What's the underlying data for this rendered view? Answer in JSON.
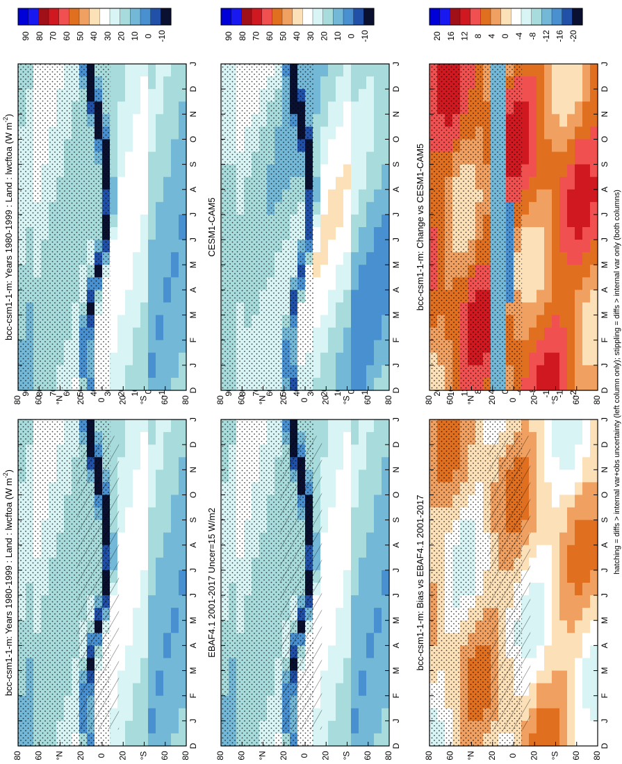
{
  "figure": {
    "footnote": "hatching = diffs > internal var+obs uncertainty (left column only); stippling = diffs > internal var only (both columns)",
    "colors": {
      "absolute": [
        "#0000d8",
        "#1818f0",
        "#a01018",
        "#d01820",
        "#f05050",
        "#e07020",
        "#f0a060",
        "#fce0b8",
        "#ffffff",
        "#d8f4f4",
        "#a8dcdc",
        "#74b8d8",
        "#4890d0",
        "#2050a8",
        "#0a1030"
      ],
      "diff": [
        "#0000d8",
        "#1818f0",
        "#a01018",
        "#d01820",
        "#f05050",
        "#e07020",
        "#f0a060",
        "#fce0b8",
        "#ffffff",
        "#d8f4f4",
        "#a8dcdc",
        "#74b8d8",
        "#4890d0",
        "#2050a8",
        "#0a1030"
      ]
    }
  },
  "chart_data": [
    {
      "type": "heatmap",
      "title": "bcc-csm1-1-m: Years 1980-1999 : Land : lwcftoa (W m",
      "title_sup": "-2",
      "title_end": ")",
      "x_ticks": [
        "D",
        "J",
        "F",
        "M",
        "A",
        "M",
        "J",
        "J",
        "A",
        "S",
        "O",
        "N",
        "D",
        "J"
      ],
      "y_ticks": [
        "80",
        "60",
        "°N",
        "20",
        "0",
        "20",
        "°S",
        "60",
        "80"
      ],
      "colorbar": [
        "90",
        "80",
        "70",
        "60",
        "50",
        "40",
        "30",
        "20",
        "10",
        "0",
        "-10"
      ],
      "scale": "absolute",
      "hatching": true
    },
    {
      "type": "heatmap",
      "title": "bcc-csm1-1-m: Years 1980-1999 : Land : lwcftoa (W m",
      "title_sup": "-2",
      "title_end": ")",
      "x_ticks": [
        "D",
        "J",
        "F",
        "M",
        "A",
        "M",
        "J",
        "J",
        "A",
        "S",
        "O",
        "N",
        "D",
        "J"
      ],
      "y_ticks": [
        "80",
        "60",
        "°N",
        "20",
        "0",
        "20",
        "°S",
        "60",
        "80"
      ],
      "colorbar": [
        "90",
        "80",
        "70",
        "60",
        "50",
        "40",
        "30",
        "20",
        "10",
        "0",
        "-10"
      ],
      "scale": "absolute",
      "hatching": false
    },
    {
      "type": "heatmap",
      "title": "EBAF4.1 2001-2017 Uncer=15 W/m2",
      "title_sup": "",
      "title_end": "",
      "x_ticks": [
        "D",
        "J",
        "F",
        "M",
        "A",
        "M",
        "J",
        "J",
        "A",
        "S",
        "O",
        "N",
        "D",
        "J"
      ],
      "y_ticks": [
        "80",
        "60",
        "°N",
        "20",
        "0",
        "20",
        "°S",
        "60",
        "80"
      ],
      "colorbar": [
        "90",
        "80",
        "70",
        "60",
        "50",
        "40",
        "30",
        "20",
        "10",
        "0",
        "-10"
      ],
      "scale": "absolute",
      "hatching": true
    },
    {
      "type": "heatmap",
      "title": "CESM1-CAM5",
      "title_sup": "",
      "title_end": "",
      "x_ticks": [
        "D",
        "J",
        "F",
        "M",
        "A",
        "M",
        "J",
        "J",
        "A",
        "S",
        "O",
        "N",
        "D",
        "J"
      ],
      "y_ticks": [
        "80",
        "60",
        "°N",
        "20",
        "0",
        "20",
        "°S",
        "60",
        "80"
      ],
      "colorbar": [
        "90",
        "80",
        "70",
        "60",
        "50",
        "40",
        "30",
        "20",
        "10",
        "0",
        "-10"
      ],
      "scale": "absolute",
      "hatching": false
    },
    {
      "type": "heatmap",
      "title": "bcc-csm1-1-m: Bias vs EBAF4.1 2001-2017",
      "title_sup": "",
      "title_end": "",
      "x_ticks": [
        "D",
        "J",
        "F",
        "M",
        "A",
        "M",
        "J",
        "J",
        "A",
        "S",
        "O",
        "N",
        "D",
        "J"
      ],
      "y_ticks": [
        "80",
        "60",
        "°N",
        "20",
        "0",
        "20",
        "°S",
        "60",
        "80"
      ],
      "colorbar": [
        "20",
        "16",
        "12",
        "8",
        "4",
        "0",
        "-4",
        "-8",
        "-12",
        "-16",
        "-20"
      ],
      "scale": "diff",
      "hatching": true
    },
    {
      "type": "heatmap",
      "title": "bcc-csm1-1-m: Change vs CESM1-CAM5",
      "title_sup": "",
      "title_end": "",
      "x_ticks": [
        "D",
        "J",
        "F",
        "M",
        "A",
        "M",
        "J",
        "J",
        "A",
        "S",
        "O",
        "N",
        "D",
        "J"
      ],
      "y_ticks": [
        "80",
        "60",
        "°N",
        "20",
        "0",
        "20",
        "°S",
        "60",
        "80"
      ],
      "colorbar": [
        "20",
        "16",
        "12",
        "8",
        "4",
        "0",
        "-4",
        "-8",
        "-12",
        "-16",
        "-20"
      ],
      "scale": "diff",
      "hatching": false
    }
  ]
}
